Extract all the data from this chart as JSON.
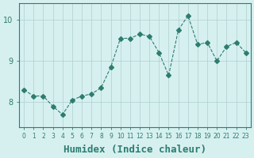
{
  "x": [
    0,
    1,
    2,
    3,
    4,
    5,
    6,
    7,
    8,
    9,
    10,
    11,
    12,
    13,
    14,
    15,
    16,
    17,
    18,
    19,
    20,
    21,
    22,
    23
  ],
  "y": [
    8.3,
    8.15,
    8.15,
    7.9,
    7.7,
    8.05,
    8.15,
    8.2,
    8.35,
    8.85,
    9.55,
    9.55,
    9.65,
    9.6,
    9.2,
    8.65,
    9.75,
    10.1,
    9.4,
    9.45,
    9.0,
    9.35,
    9.45,
    9.2
  ],
  "line_color": "#2e7d6e",
  "marker": "D",
  "marker_size": 3,
  "line_width": 0.8,
  "bg_color": "#d6f0f0",
  "grid_color": "#b0cece",
  "axis_color": "#2e7d6e",
  "tick_color": "#2e7d6e",
  "xlabel": "Humidex (Indice chaleur)",
  "xlabel_fontsize": 9,
  "ylabel_ticks": [
    8,
    9,
    10
  ],
  "xlim": [
    -0.5,
    23.5
  ],
  "ylim": [
    7.4,
    10.4
  ],
  "figsize": [
    3.2,
    2.0
  ],
  "dpi": 100
}
